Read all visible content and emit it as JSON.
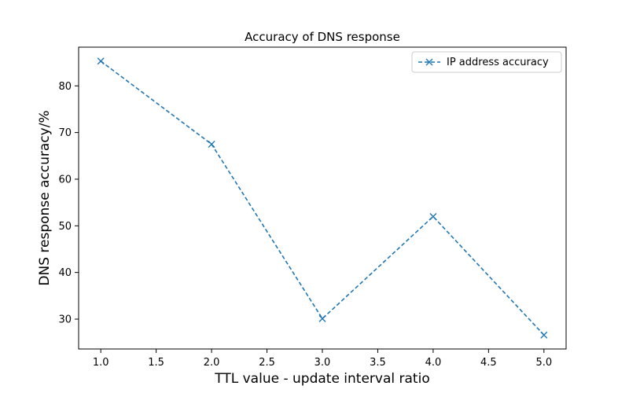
{
  "chart_data": {
    "type": "line",
    "title": "Accuracy of DNS response",
    "xlabel": "TTL value - update interval ratio",
    "ylabel": "DNS response accuracy/%",
    "x": [
      1.0,
      2.0,
      3.0,
      4.0,
      5.0
    ],
    "series": [
      {
        "name": "IP address accuracy",
        "values": [
          85.3,
          67.5,
          30.1,
          52.0,
          26.6
        ],
        "color": "#1f77b4",
        "line_style": "dashed",
        "marker": "x"
      }
    ],
    "xlim": [
      0.8,
      5.2
    ],
    "ylim": [
      23.6,
      88.3
    ],
    "xticks": [
      1.0,
      1.5,
      2.0,
      2.5,
      3.0,
      3.5,
      4.0,
      4.5,
      5.0
    ],
    "xtick_labels": [
      "1.0",
      "1.5",
      "2.0",
      "2.5",
      "3.0",
      "3.5",
      "4.0",
      "4.5",
      "5.0"
    ],
    "yticks": [
      30,
      40,
      50,
      60,
      70,
      80
    ],
    "ytick_labels": [
      "30",
      "40",
      "50",
      "60",
      "70",
      "80"
    ],
    "grid": false,
    "legend_position": "top-right"
  }
}
